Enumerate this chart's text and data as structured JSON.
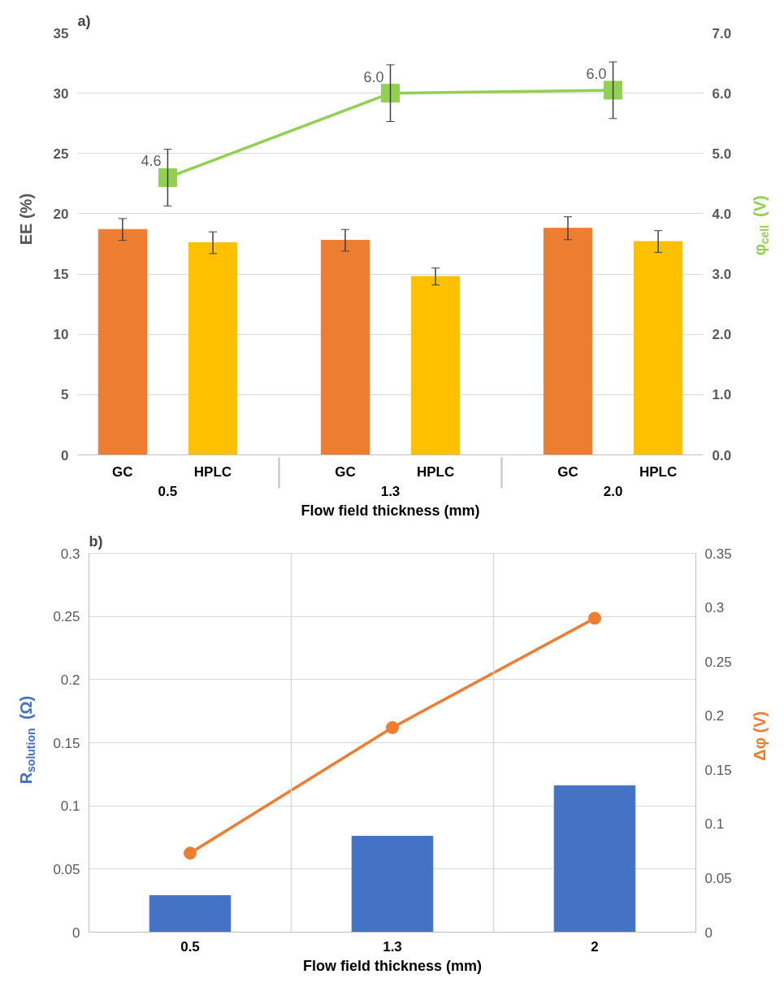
{
  "chart_data": [
    {
      "type": "bar",
      "title": "a)",
      "categories": [
        "0.5",
        "1.3",
        "2.0"
      ],
      "xlabel": "Flow field thickness (mm)",
      "ylabel": "EE (%)",
      "y2label": "φ$_{cell}$ (V)",
      "series": [
        {
          "name": "GC",
          "color": "#ed7d31",
          "values": [
            18.7,
            17.8,
            18.8
          ],
          "errors": [
            0.9,
            0.9,
            0.95
          ]
        },
        {
          "name": "HPLC",
          "color": "#ffc000",
          "values": [
            17.6,
            14.8,
            17.7
          ],
          "errors": [
            0.9,
            0.7,
            0.9
          ]
        },
        {
          "type": "line",
          "axis": "y2",
          "color": "#92d050",
          "values": [
            4.6,
            6.0,
            6.05
          ],
          "errors": [
            0.47,
            0.47,
            0.47
          ],
          "value_labels": [
            "4.6",
            "6.0",
            "6.0"
          ],
          "marker": "square"
        }
      ],
      "ylim": [
        0,
        35
      ],
      "yticks": [
        0,
        5,
        10,
        15,
        20,
        25,
        30,
        35
      ],
      "y2lim": [
        0,
        7
      ],
      "y2ticks": [
        {
          "value": 0,
          "label": "0.0"
        },
        {
          "value": 1,
          "label": "1.0"
        },
        {
          "value": 2,
          "label": "2.0"
        },
        {
          "value": 3,
          "label": "3.0"
        },
        {
          "value": 4,
          "label": "4.0"
        },
        {
          "value": 5,
          "label": "5.0"
        },
        {
          "value": 6,
          "label": "6.0"
        },
        {
          "value": 7,
          "label": "7.0"
        }
      ],
      "grid": "y"
    },
    {
      "type": "bar",
      "title": "b)",
      "categories": [
        "0.5",
        "1.3",
        "2"
      ],
      "xlabel": "Flow field thickness (mm)",
      "ylabel": "R$_{solution}$ (Ω)",
      "y2label": "Δφ (V)",
      "series": [
        {
          "color": "#4472c4",
          "values": [
            0.029,
            0.076,
            0.116
          ]
        },
        {
          "type": "line",
          "axis": "y2",
          "color": "#ed7d31",
          "values": [
            0.073,
            0.189,
            0.29
          ],
          "marker": "circle"
        }
      ],
      "ylim": [
        0,
        0.3
      ],
      "yticks": [
        0,
        0.05,
        0.1,
        0.15,
        0.2,
        0.25,
        0.3
      ],
      "y2lim": [
        0,
        0.35
      ],
      "y2ticks": [
        0,
        0.05,
        0.1,
        0.15,
        0.2,
        0.25,
        0.3,
        0.35
      ],
      "grid": true
    }
  ]
}
